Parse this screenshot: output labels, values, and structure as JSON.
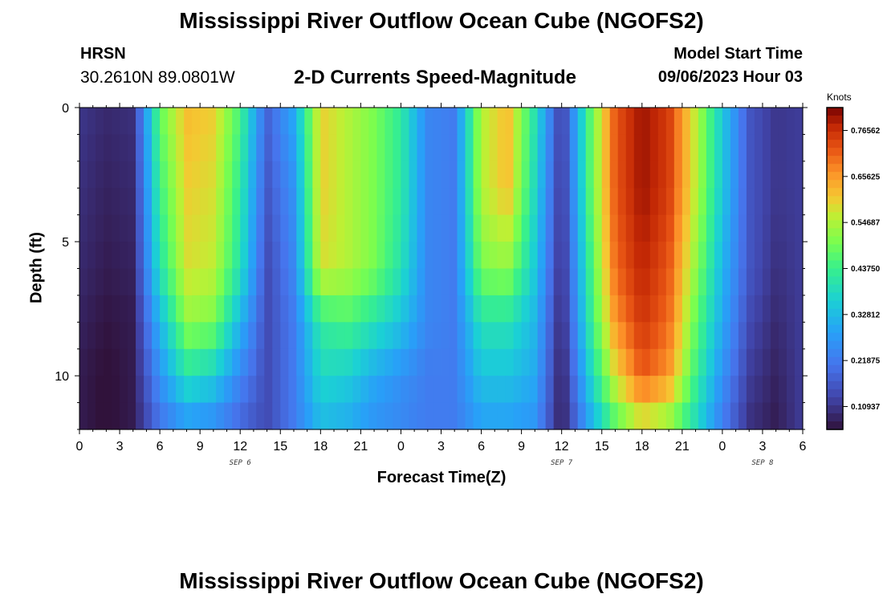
{
  "title": "Mississippi River Outflow Ocean Cube (NGOFS2)",
  "title_repeat": "Mississippi River Outflow Ocean Cube (NGOFS2)",
  "station": {
    "name": "HRSN",
    "coords": "30.2610N  89.0801W"
  },
  "subtitle": "2-D Currents Speed-Magnitude",
  "model_start": {
    "label": "Model Start Time",
    "value": "09/06/2023 Hour 03"
  },
  "chart_data": {
    "type": "heatmap",
    "title": "2-D Currents Speed-Magnitude",
    "xlabel": "Forecast Time(Z)",
    "ylabel": "Depth (ft)",
    "x_range_hours": [
      0,
      54
    ],
    "y_range_ft": [
      0,
      12
    ],
    "x_tick_labels": [
      "0",
      "3",
      "6",
      "9",
      "12",
      "15",
      "18",
      "21",
      "0",
      "3",
      "6",
      "9",
      "12",
      "15",
      "18",
      "21",
      "0",
      "3",
      "6"
    ],
    "y_ticks": [
      0,
      5,
      10
    ],
    "date_labels": [
      {
        "label": "SEP 6",
        "hour": 12
      },
      {
        "label": "SEP 7",
        "hour": 36
      },
      {
        "label": "SEP 8",
        "hour": 51
      }
    ],
    "colorbar": {
      "unit": "Knots",
      "min": 0.055,
      "max": 0.82,
      "tick_labels": [
        "0.76562",
        "0.65625",
        "0.54687",
        "0.43750",
        "0.32812",
        "0.21875",
        "0.10937"
      ]
    },
    "columns_hours": [
      0,
      2,
      4,
      6,
      8,
      10,
      12,
      14,
      16,
      18,
      20,
      22,
      24,
      26,
      28,
      30,
      32,
      34,
      36,
      38,
      40,
      42,
      44,
      46,
      48,
      50,
      52,
      54
    ],
    "depth_rows_ft": [
      0,
      3,
      6,
      8,
      10,
      12
    ],
    "speed_knots": [
      [
        0.11,
        0.09,
        0.1,
        0.48,
        0.62,
        0.6,
        0.45,
        0.18,
        0.3,
        0.6,
        0.55,
        0.5,
        0.42,
        0.24,
        0.22,
        0.55,
        0.62,
        0.4,
        0.11,
        0.45,
        0.72,
        0.8,
        0.75,
        0.56,
        0.35,
        0.16,
        0.11,
        0.12
      ],
      [
        0.1,
        0.08,
        0.09,
        0.44,
        0.6,
        0.58,
        0.42,
        0.16,
        0.26,
        0.6,
        0.55,
        0.5,
        0.42,
        0.24,
        0.22,
        0.55,
        0.62,
        0.38,
        0.1,
        0.45,
        0.72,
        0.8,
        0.75,
        0.56,
        0.35,
        0.16,
        0.11,
        0.12
      ],
      [
        0.09,
        0.07,
        0.08,
        0.4,
        0.58,
        0.56,
        0.4,
        0.14,
        0.24,
        0.58,
        0.55,
        0.5,
        0.4,
        0.24,
        0.22,
        0.5,
        0.52,
        0.35,
        0.09,
        0.42,
        0.7,
        0.78,
        0.72,
        0.52,
        0.32,
        0.16,
        0.1,
        0.12
      ],
      [
        0.08,
        0.06,
        0.07,
        0.32,
        0.52,
        0.5,
        0.32,
        0.14,
        0.22,
        0.42,
        0.45,
        0.4,
        0.34,
        0.24,
        0.22,
        0.4,
        0.4,
        0.32,
        0.08,
        0.4,
        0.66,
        0.76,
        0.7,
        0.48,
        0.3,
        0.14,
        0.09,
        0.12
      ],
      [
        0.07,
        0.05,
        0.07,
        0.26,
        0.4,
        0.36,
        0.24,
        0.14,
        0.22,
        0.38,
        0.36,
        0.3,
        0.26,
        0.22,
        0.22,
        0.34,
        0.34,
        0.3,
        0.07,
        0.35,
        0.58,
        0.72,
        0.66,
        0.44,
        0.26,
        0.12,
        0.08,
        0.12
      ],
      [
        0.07,
        0.05,
        0.07,
        0.2,
        0.26,
        0.24,
        0.18,
        0.14,
        0.22,
        0.32,
        0.3,
        0.26,
        0.24,
        0.22,
        0.22,
        0.28,
        0.28,
        0.26,
        0.07,
        0.28,
        0.45,
        0.55,
        0.5,
        0.38,
        0.22,
        0.1,
        0.07,
        0.12
      ]
    ]
  }
}
